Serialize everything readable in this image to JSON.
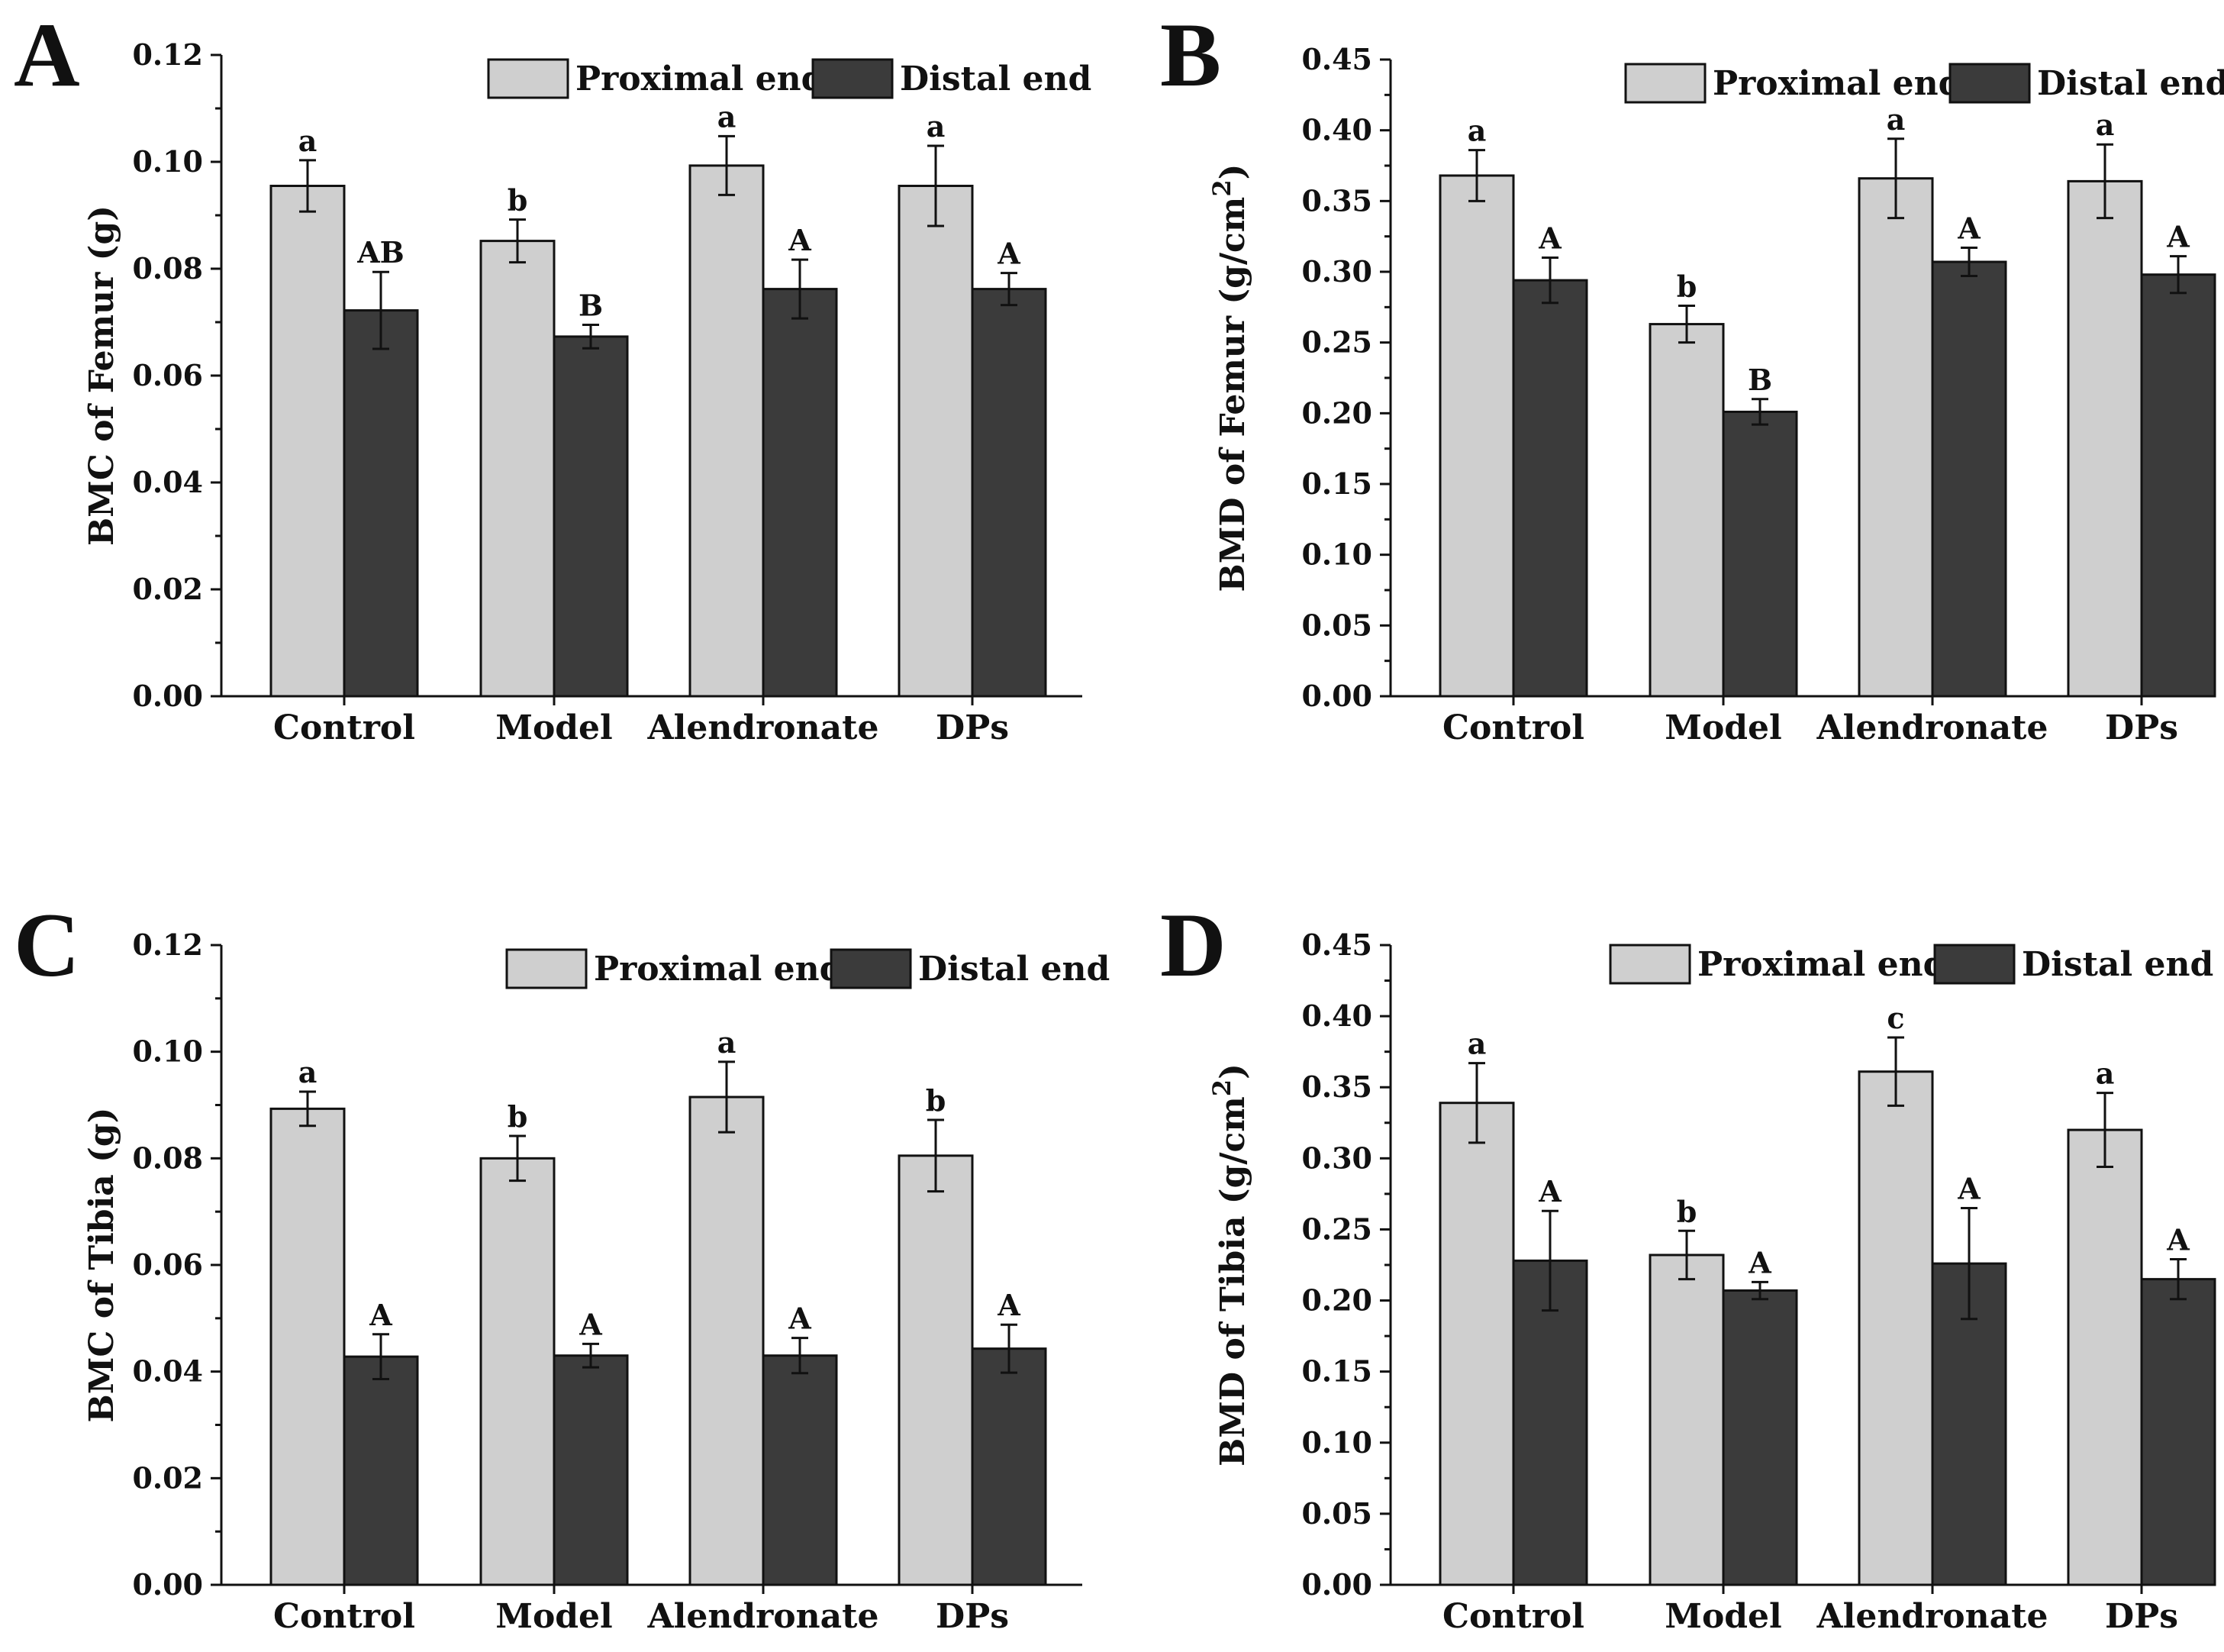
{
  "colors": {
    "proximal": "#cfcfcf",
    "distal": "#3b3b3b",
    "axis": "#111111"
  },
  "chart_data": [
    {
      "panel": "A",
      "type": "bar",
      "ylabel": "BMC of Femur  (g)",
      "ylim": [
        0,
        0.12
      ],
      "yticks": [
        "0.00",
        "0.02",
        "0.04",
        "0.06",
        "0.08",
        "0.10",
        "0.12"
      ],
      "categories": [
        "Control",
        "Model",
        "Alendronate",
        "DPs"
      ],
      "legend": [
        "Proximal end",
        "Distal end"
      ],
      "series": [
        {
          "name": "Proximal end",
          "values": [
            0.0955,
            0.0852,
            0.0993,
            0.0955
          ],
          "errors": [
            0.0048,
            0.004,
            0.0055,
            0.0075
          ],
          "sig": [
            "a",
            "b",
            "a",
            "a"
          ]
        },
        {
          "name": "Distal end",
          "values": [
            0.0722,
            0.0673,
            0.0762,
            0.0762
          ],
          "errors": [
            0.0072,
            0.0022,
            0.0055,
            0.003
          ],
          "sig": [
            "AB",
            "B",
            "A",
            "A"
          ]
        }
      ]
    },
    {
      "panel": "B",
      "type": "bar",
      "ylabel": "BMD of Femur (g/cm",
      "ylabel_sup": "2",
      "ylabel_end": ")",
      "ylim": [
        0,
        0.45
      ],
      "yticks": [
        "0.00",
        "0.05",
        "0.10",
        "0.15",
        "0.20",
        "0.25",
        "0.30",
        "0.35",
        "0.40",
        "0.45"
      ],
      "categories": [
        "Control",
        "Model",
        "Alendronate",
        "DPs"
      ],
      "legend": [
        "Proximal end",
        "Distal end"
      ],
      "series": [
        {
          "name": "Proximal end",
          "values": [
            0.368,
            0.263,
            0.366,
            0.364
          ],
          "errors": [
            0.018,
            0.013,
            0.028,
            0.026
          ],
          "sig": [
            "a",
            "b",
            "a",
            "a"
          ]
        },
        {
          "name": "Distal end",
          "values": [
            0.294,
            0.201,
            0.307,
            0.298
          ],
          "errors": [
            0.016,
            0.009,
            0.01,
            0.013
          ],
          "sig": [
            "A",
            "B",
            "A",
            "A"
          ]
        }
      ]
    },
    {
      "panel": "C",
      "type": "bar",
      "ylabel": "BMC of Tibia (g)",
      "ylim": [
        0,
        0.12
      ],
      "yticks": [
        "0.00",
        "0.02",
        "0.04",
        "0.06",
        "0.08",
        "0.10",
        "0.12"
      ],
      "categories": [
        "Control",
        "Model",
        "Alendronate",
        "DPs"
      ],
      "legend": [
        "Proximal end",
        "Distal end"
      ],
      "series": [
        {
          "name": "Proximal end",
          "values": [
            0.0893,
            0.08,
            0.0915,
            0.0805
          ],
          "errors": [
            0.0032,
            0.0042,
            0.0066,
            0.0067
          ],
          "sig": [
            "a",
            "b",
            "a",
            "b"
          ]
        },
        {
          "name": "Distal end",
          "values": [
            0.0428,
            0.043,
            0.043,
            0.0443
          ],
          "errors": [
            0.0042,
            0.0022,
            0.0033,
            0.0045
          ],
          "sig": [
            "A",
            "A",
            "A",
            "A"
          ]
        }
      ]
    },
    {
      "panel": "D",
      "type": "bar",
      "ylabel": "BMD of Tibia (g/cm",
      "ylabel_sup": "2",
      "ylabel_end": ")",
      "ylim": [
        0,
        0.45
      ],
      "yticks": [
        "0.00",
        "0.05",
        "0.10",
        "0.15",
        "0.20",
        "0.25",
        "0.30",
        "0.35",
        "0.40",
        "0.45"
      ],
      "categories": [
        "Control",
        "Model",
        "Alendronate",
        "DPs"
      ],
      "legend": [
        "Proximal end",
        "Distal end"
      ],
      "series": [
        {
          "name": "Proximal end",
          "values": [
            0.339,
            0.232,
            0.361,
            0.32
          ],
          "errors": [
            0.028,
            0.017,
            0.024,
            0.026
          ],
          "sig": [
            "a",
            "b",
            "c",
            "a"
          ]
        },
        {
          "name": "Distal end",
          "values": [
            0.228,
            0.207,
            0.226,
            0.215
          ],
          "errors": [
            0.035,
            0.006,
            0.039,
            0.014
          ],
          "sig": [
            "A",
            "A",
            "A",
            "A"
          ]
        }
      ]
    }
  ]
}
